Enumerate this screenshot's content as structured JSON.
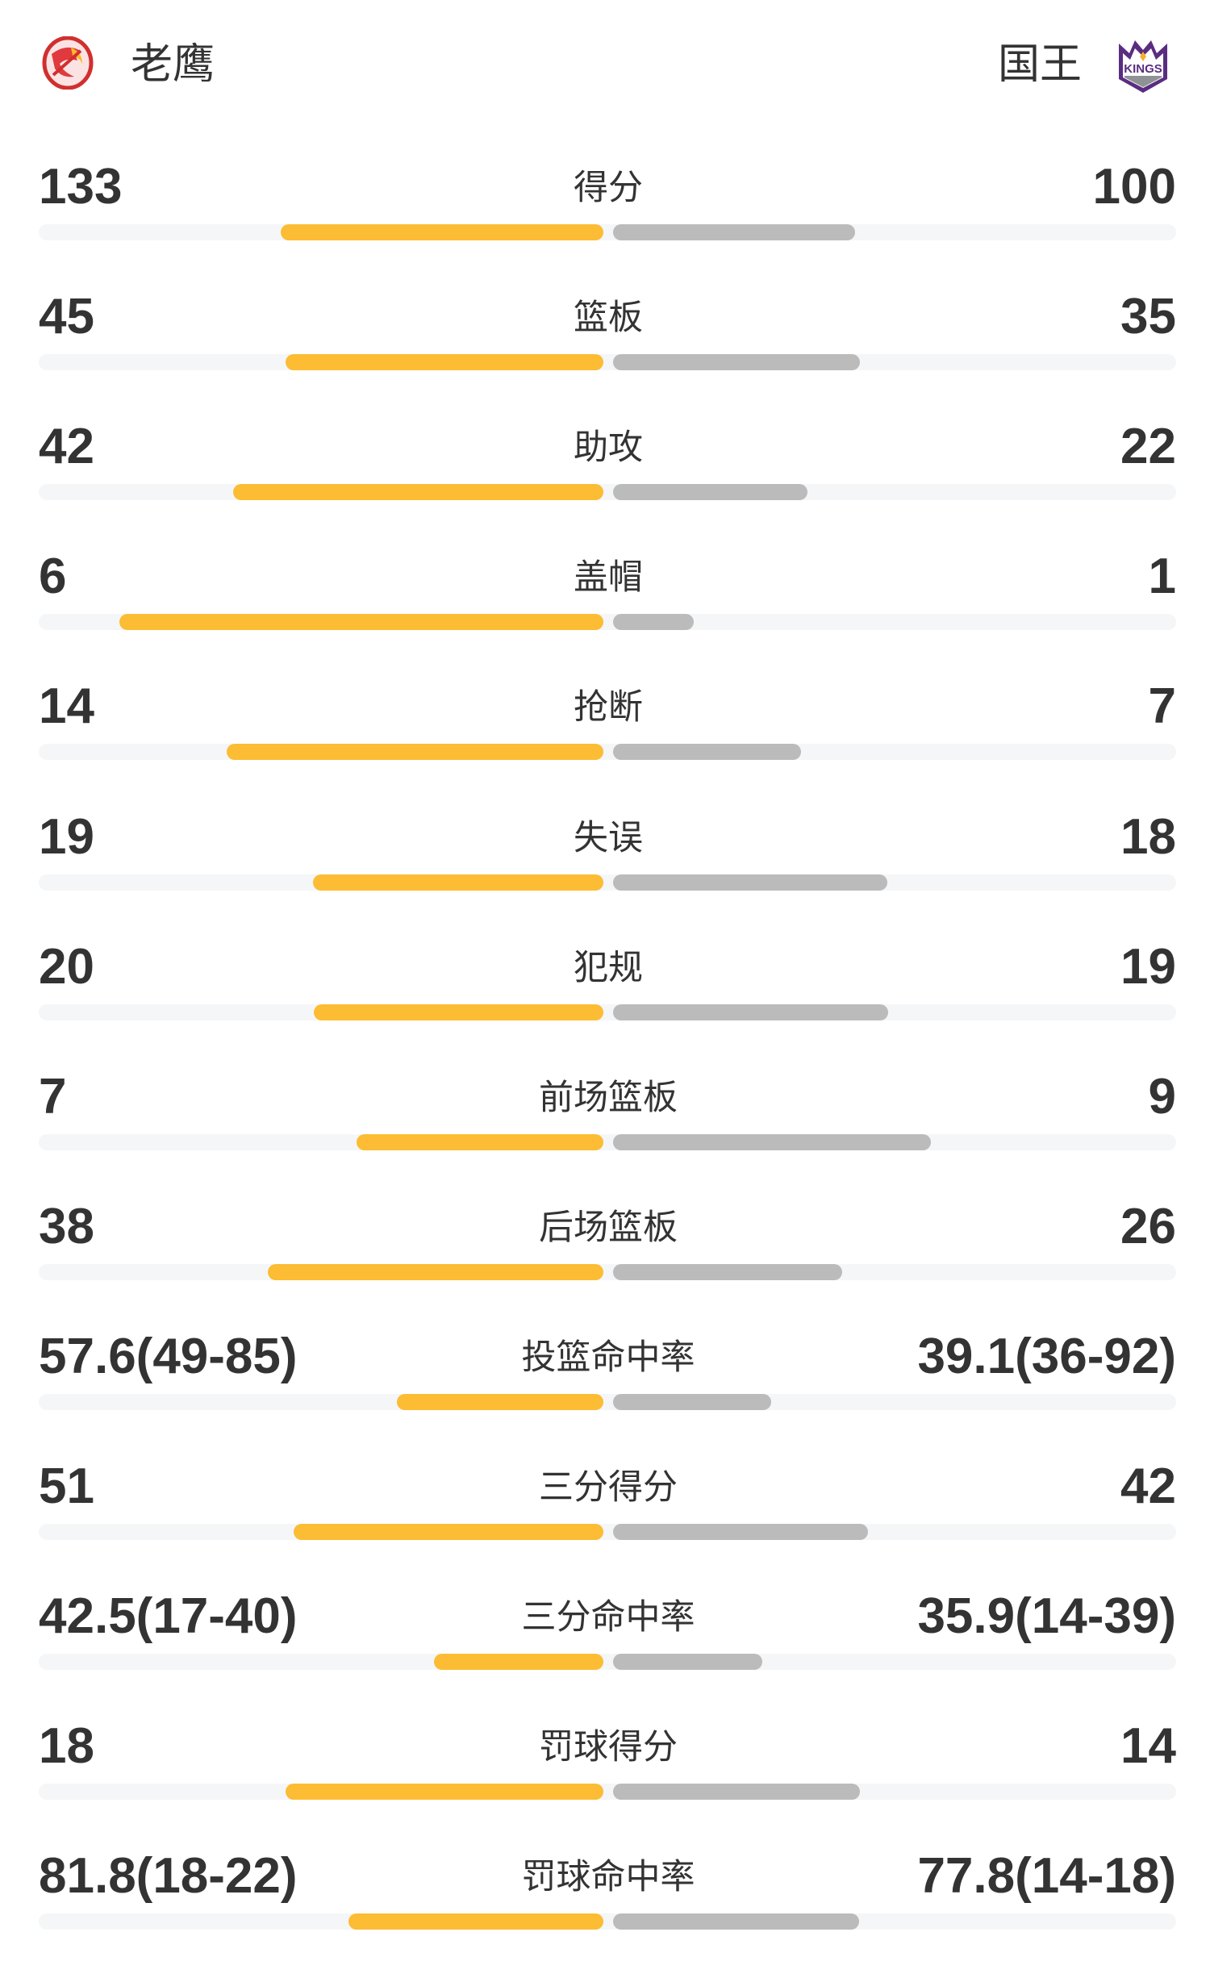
{
  "home": {
    "name": "老鹰",
    "logo": "hawks-logo",
    "color": "#fcbc33"
  },
  "away": {
    "name": "国王",
    "logo": "kings-logo",
    "color": "#bbbbbb"
  },
  "stats": [
    {
      "label": "得分",
      "home": "133",
      "away": "100",
      "home_fill": 0.571,
      "away_fill": 0.429
    },
    {
      "label": "篮板",
      "home": "45",
      "away": "35",
      "home_fill": 0.5625,
      "away_fill": 0.4375
    },
    {
      "label": "助攻",
      "home": "42",
      "away": "22",
      "home_fill": 0.656,
      "away_fill": 0.344
    },
    {
      "label": "盖帽",
      "home": "6",
      "away": "1",
      "home_fill": 0.857,
      "away_fill": 0.143
    },
    {
      "label": "抢断",
      "home": "14",
      "away": "7",
      "home_fill": 0.667,
      "away_fill": 0.333
    },
    {
      "label": "失误",
      "home": "19",
      "away": "18",
      "home_fill": 0.514,
      "away_fill": 0.486
    },
    {
      "label": "犯规",
      "home": "20",
      "away": "19",
      "home_fill": 0.513,
      "away_fill": 0.487
    },
    {
      "label": "前场篮板",
      "home": "7",
      "away": "9",
      "home_fill": 0.4375,
      "away_fill": 0.5625
    },
    {
      "label": "后场篮板",
      "home": "38",
      "away": "26",
      "home_fill": 0.594,
      "away_fill": 0.406
    },
    {
      "label": "投篮命中率",
      "home": "57.6(49-85)",
      "away": "39.1(36-92)",
      "home_fill": 0.366,
      "away_fill": 0.28
    },
    {
      "label": "三分得分",
      "home": "51",
      "away": "42",
      "home_fill": 0.548,
      "away_fill": 0.452
    },
    {
      "label": "三分命中率",
      "home": "42.5(17-40)",
      "away": "35.9(14-39)",
      "home_fill": 0.3,
      "away_fill": 0.264
    },
    {
      "label": "罚球得分",
      "home": "18",
      "away": "14",
      "home_fill": 0.5625,
      "away_fill": 0.4375
    },
    {
      "label": "罚球命中率",
      "home": "81.8(18-22)",
      "away": "77.8(14-18)",
      "home_fill": 0.452,
      "away_fill": 0.436
    }
  ]
}
